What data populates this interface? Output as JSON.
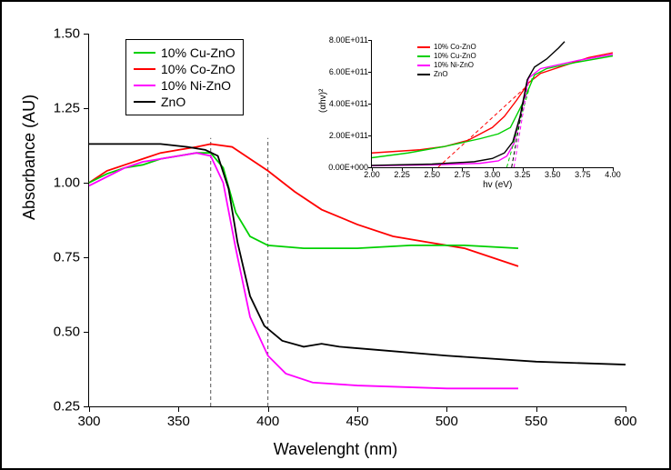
{
  "main": {
    "xlabel": "Wavelenght (nm)",
    "ylabel": "Absorbance (AU)",
    "xlim": [
      300,
      600
    ],
    "ylim": [
      0.25,
      1.5
    ],
    "xticks": [
      300,
      350,
      400,
      450,
      500,
      550,
      600
    ],
    "yticks": [
      0.25,
      0.5,
      0.75,
      1.0,
      1.25,
      1.5
    ],
    "yticklabels": [
      "0.25",
      "0.50",
      "0.75",
      "1.00",
      "1.25",
      "1.50"
    ],
    "vlines": [
      368,
      400
    ],
    "legend": [
      {
        "color": "#00d000",
        "label": "10% Cu-ZnO"
      },
      {
        "color": "#ff0000",
        "label": "10% Co-ZnO"
      },
      {
        "color": "#ff00ff",
        "label": "10% Ni-ZnO"
      },
      {
        "color": "#000000",
        "label": "ZnO"
      }
    ],
    "series": {
      "cu": {
        "color": "#00d000",
        "pts": [
          [
            300,
            1.0
          ],
          [
            310,
            1.03
          ],
          [
            320,
            1.05
          ],
          [
            330,
            1.06
          ],
          [
            340,
            1.08
          ],
          [
            350,
            1.09
          ],
          [
            360,
            1.1
          ],
          [
            368,
            1.1
          ],
          [
            375,
            1.05
          ],
          [
            382,
            0.9
          ],
          [
            390,
            0.82
          ],
          [
            400,
            0.79
          ],
          [
            420,
            0.78
          ],
          [
            450,
            0.78
          ],
          [
            480,
            0.79
          ],
          [
            510,
            0.79
          ],
          [
            540,
            0.78
          ]
        ]
      },
      "co": {
        "color": "#ff0000",
        "pts": [
          [
            300,
            1.0
          ],
          [
            310,
            1.04
          ],
          [
            320,
            1.06
          ],
          [
            330,
            1.08
          ],
          [
            340,
            1.1
          ],
          [
            350,
            1.11
          ],
          [
            360,
            1.12
          ],
          [
            368,
            1.13
          ],
          [
            380,
            1.12
          ],
          [
            390,
            1.08
          ],
          [
            400,
            1.04
          ],
          [
            415,
            0.97
          ],
          [
            430,
            0.91
          ],
          [
            450,
            0.86
          ],
          [
            470,
            0.82
          ],
          [
            490,
            0.8
          ],
          [
            510,
            0.78
          ],
          [
            540,
            0.72
          ]
        ]
      },
      "ni": {
        "color": "#ff00ff",
        "pts": [
          [
            300,
            0.99
          ],
          [
            310,
            1.02
          ],
          [
            320,
            1.05
          ],
          [
            330,
            1.07
          ],
          [
            340,
            1.08
          ],
          [
            350,
            1.09
          ],
          [
            360,
            1.1
          ],
          [
            368,
            1.09
          ],
          [
            375,
            1.0
          ],
          [
            382,
            0.78
          ],
          [
            390,
            0.55
          ],
          [
            400,
            0.42
          ],
          [
            410,
            0.36
          ],
          [
            425,
            0.33
          ],
          [
            450,
            0.32
          ],
          [
            500,
            0.31
          ],
          [
            540,
            0.31
          ]
        ]
      },
      "zno": {
        "color": "#000000",
        "pts": [
          [
            300,
            1.13
          ],
          [
            320,
            1.13
          ],
          [
            340,
            1.13
          ],
          [
            355,
            1.12
          ],
          [
            365,
            1.11
          ],
          [
            372,
            1.09
          ],
          [
            378,
            0.98
          ],
          [
            383,
            0.8
          ],
          [
            390,
            0.62
          ],
          [
            398,
            0.52
          ],
          [
            408,
            0.47
          ],
          [
            420,
            0.45
          ],
          [
            430,
            0.46
          ],
          [
            440,
            0.45
          ],
          [
            460,
            0.44
          ],
          [
            500,
            0.42
          ],
          [
            550,
            0.4
          ],
          [
            600,
            0.39
          ]
        ]
      }
    }
  },
  "inset": {
    "xlabel": "hv (eV)",
    "ylabel": "(αhv)²",
    "xlim": [
      2.0,
      4.0
    ],
    "ylim": [
      0,
      800000000000.0
    ],
    "xticks": [
      2.0,
      2.25,
      2.5,
      2.75,
      3.0,
      3.25,
      3.5,
      3.75,
      4.0
    ],
    "yticks": [
      0,
      200000000000.0,
      400000000000.0,
      600000000000.0,
      800000000000.0
    ],
    "yticklabels": [
      "0.00E+000",
      "2.00E+011",
      "4.00E+011",
      "6.00E+011",
      "8.00E+011"
    ],
    "legend": [
      {
        "color": "#ff0000",
        "label": "10% Co-ZnO"
      },
      {
        "color": "#00d000",
        "label": "10% Cu-ZnO"
      },
      {
        "color": "#ff00ff",
        "label": "10% Ni-ZnO"
      },
      {
        "color": "#000000",
        "label": "ZnO"
      }
    ],
    "series": {
      "co": {
        "color": "#ff0000",
        "pts": [
          [
            2.0,
            90000000000.0
          ],
          [
            2.2,
            100000000000.0
          ],
          [
            2.4,
            110000000000.0
          ],
          [
            2.6,
            130000000000.0
          ],
          [
            2.8,
            170000000000.0
          ],
          [
            3.0,
            250000000000.0
          ],
          [
            3.1,
            320000000000.0
          ],
          [
            3.2,
            420000000000.0
          ],
          [
            3.3,
            530000000000.0
          ],
          [
            3.4,
            590000000000.0
          ],
          [
            3.6,
            640000000000.0
          ],
          [
            3.8,
            690000000000.0
          ],
          [
            4.0,
            720000000000.0
          ]
        ]
      },
      "cu": {
        "color": "#00d000",
        "pts": [
          [
            2.0,
            60000000000.0
          ],
          [
            2.3,
            90000000000.0
          ],
          [
            2.6,
            130000000000.0
          ],
          [
            2.9,
            180000000000.0
          ],
          [
            3.05,
            210000000000.0
          ],
          [
            3.15,
            250000000000.0
          ],
          [
            3.25,
            400000000000.0
          ],
          [
            3.35,
            580000000000.0
          ],
          [
            3.45,
            620000000000.0
          ],
          [
            3.7,
            660000000000.0
          ],
          [
            4.0,
            700000000000.0
          ]
        ]
      },
      "ni": {
        "color": "#ff00ff",
        "pts": [
          [
            2.0,
            10000000000.0
          ],
          [
            2.5,
            15000000000.0
          ],
          [
            2.9,
            25000000000.0
          ],
          [
            3.05,
            40000000000.0
          ],
          [
            3.12,
            70000000000.0
          ],
          [
            3.18,
            150000000000.0
          ],
          [
            3.24,
            350000000000.0
          ],
          [
            3.3,
            560000000000.0
          ],
          [
            3.4,
            620000000000.0
          ],
          [
            3.7,
            670000000000.0
          ],
          [
            4.0,
            710000000000.0
          ]
        ]
      },
      "zno": {
        "color": "#000000",
        "pts": [
          [
            2.0,
            12000000000.0
          ],
          [
            2.5,
            20000000000.0
          ],
          [
            2.85,
            35000000000.0
          ],
          [
            3.0,
            55000000000.0
          ],
          [
            3.1,
            90000000000.0
          ],
          [
            3.17,
            160000000000.0
          ],
          [
            3.23,
            320000000000.0
          ],
          [
            3.29,
            550000000000.0
          ],
          [
            3.35,
            630000000000.0
          ],
          [
            3.45,
            680000000000.0
          ],
          [
            3.55,
            750000000000.0
          ],
          [
            3.6,
            790000000000.0
          ]
        ]
      }
    },
    "dashed": [
      {
        "color": "#ff0000",
        "pts": [
          [
            2.55,
            0
          ],
          [
            3.3,
            520000000000.0
          ]
        ]
      },
      {
        "color": "#00d000",
        "pts": [
          [
            3.12,
            0
          ],
          [
            3.33,
            560000000000.0
          ]
        ]
      },
      {
        "color": "#ff00ff",
        "pts": [
          [
            3.18,
            0
          ],
          [
            3.3,
            550000000000.0
          ]
        ]
      },
      {
        "color": "#000000",
        "pts": [
          [
            3.16,
            0
          ],
          [
            3.29,
            540000000000.0
          ]
        ]
      }
    ]
  }
}
